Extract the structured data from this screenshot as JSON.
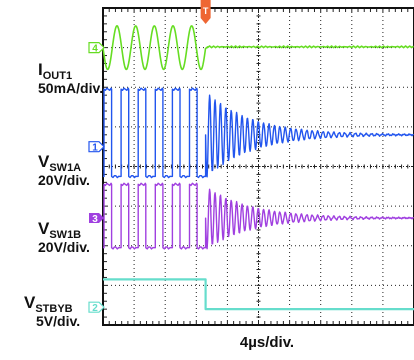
{
  "chart_data": {
    "type": "line",
    "xlabel": "4µs/div.",
    "trigger_marker": "T",
    "x_divisions": 10,
    "y_divisions": 8,
    "trigger_time_div": 3.3,
    "channels": [
      {
        "id": "ch4",
        "marker": "4",
        "name_main": "I",
        "name_sub": "OUT1",
        "scale": "50mA/div.",
        "color": "#66dd22",
        "waveform": "sine-then-flat",
        "baseline_div": 1.0,
        "amplitude_div": 0.55,
        "cycles_before_trigger": 5.5,
        "level_after_trigger_div": 0.98
      },
      {
        "id": "ch1",
        "marker": "1",
        "name_main": "V",
        "name_sub": "SW1A",
        "scale": "20V/div.",
        "color": "#2255ee",
        "waveform": "square-then-ringing",
        "baseline_div": 3.2,
        "high_div": 2.05,
        "low_div": 4.25,
        "cycles_before_trigger": 6,
        "ring_cycles": 14
      },
      {
        "id": "ch3",
        "marker": "3",
        "name_main": "V",
        "name_sub": "SW1B",
        "scale": "20V/div.",
        "color": "#a040e0",
        "waveform": "square-then-ringing",
        "baseline_div": 5.3,
        "high_div": 4.45,
        "low_div": 6.05,
        "cycles_before_trigger": 6,
        "ring_cycles": 14
      },
      {
        "id": "ch2",
        "marker": "2",
        "name_main": "V",
        "name_sub": "STBYB",
        "scale": "5V/div.",
        "color": "#66ddcc",
        "waveform": "step-down",
        "high_div": 6.85,
        "low_div": 7.6
      }
    ]
  }
}
